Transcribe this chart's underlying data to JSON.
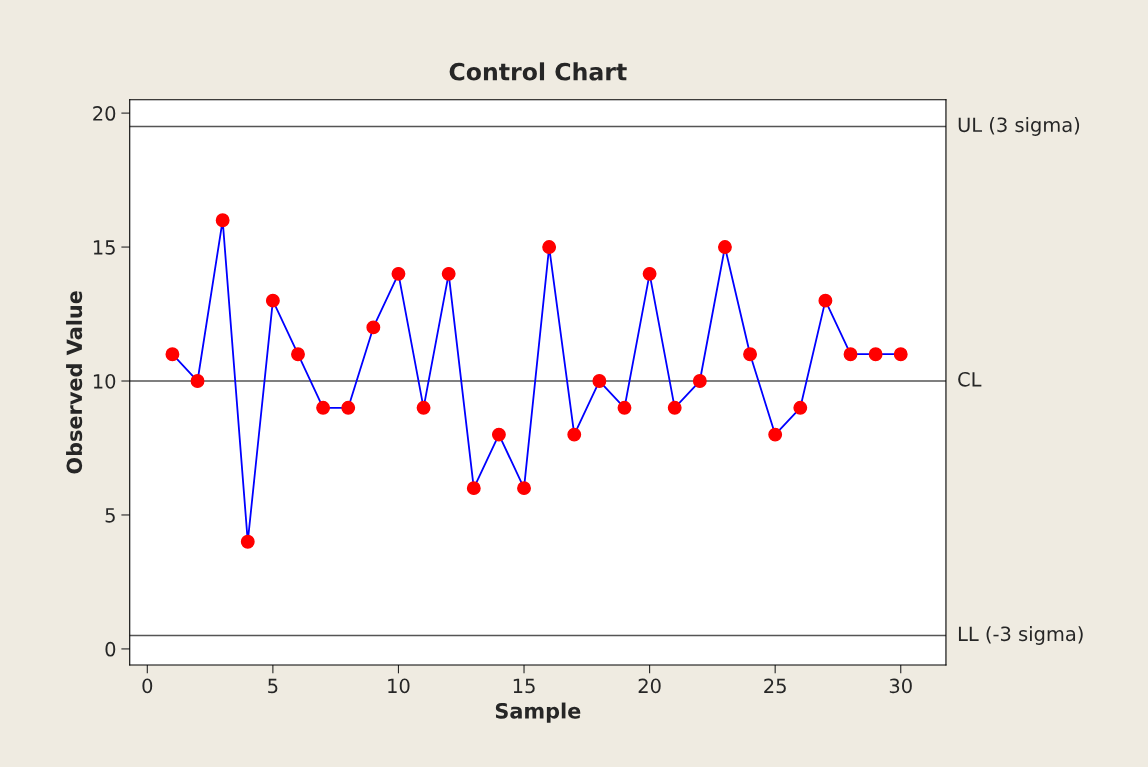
{
  "chart_data": {
    "type": "line",
    "title": "Control Chart",
    "xlabel": "Sample",
    "ylabel": "Observed Value",
    "x": [
      1,
      2,
      3,
      4,
      5,
      6,
      7,
      8,
      9,
      10,
      11,
      12,
      13,
      14,
      15,
      16,
      17,
      18,
      19,
      20,
      21,
      22,
      23,
      24,
      25,
      26,
      27,
      28,
      29,
      30
    ],
    "series": [
      {
        "color": "#0000ff",
        "colors": [
          "#ff0000",
          "#ff0000",
          "#ff0000",
          "#ff0000",
          "#ff0000",
          "#ff0000",
          "#ff0000",
          "#ff0000",
          "#ff0000",
          "#ff0000",
          "#ff0000",
          "#ff0000",
          "#ff0000",
          "#ff0000",
          "#ff0000",
          "#ff0000",
          "#ff0000",
          "#ff0000",
          "#ff0000",
          "#ff0000",
          "#ff0000",
          "#ff0000",
          "#ff0000",
          "#ff0000",
          "#ff0000",
          "#ff0000",
          "#ff0000",
          "#ff0000",
          "#ff0000",
          "#ff0000"
        ],
        "values": [
          11,
          10,
          16,
          4,
          13,
          11,
          9,
          9,
          12,
          14,
          9,
          14,
          6,
          8,
          6,
          15,
          8,
          10,
          9,
          14,
          9,
          10,
          15,
          11,
          8,
          9,
          13,
          11,
          11,
          11
        ]
      }
    ],
    "marker": "circle",
    "line_style": "solid",
    "xlim": [
      -0.7,
      31.8
    ],
    "xticks": [
      0,
      5,
      10,
      15,
      20,
      25,
      30
    ],
    "ylim": [
      -0.6,
      20.5
    ],
    "yticks": [
      0,
      5,
      10,
      15,
      20
    ],
    "ref_lines": [
      {
        "axis": "y",
        "value": 19.5,
        "label": "UL (3 sigma)",
        "color": "#555555"
      },
      {
        "axis": "y",
        "value": 10,
        "label": "CL",
        "color": "#555555"
      },
      {
        "axis": "y",
        "value": 0.5,
        "label": "LL (-3 sigma)",
        "color": "#555555"
      }
    ],
    "grid": false,
    "legend": false
  }
}
